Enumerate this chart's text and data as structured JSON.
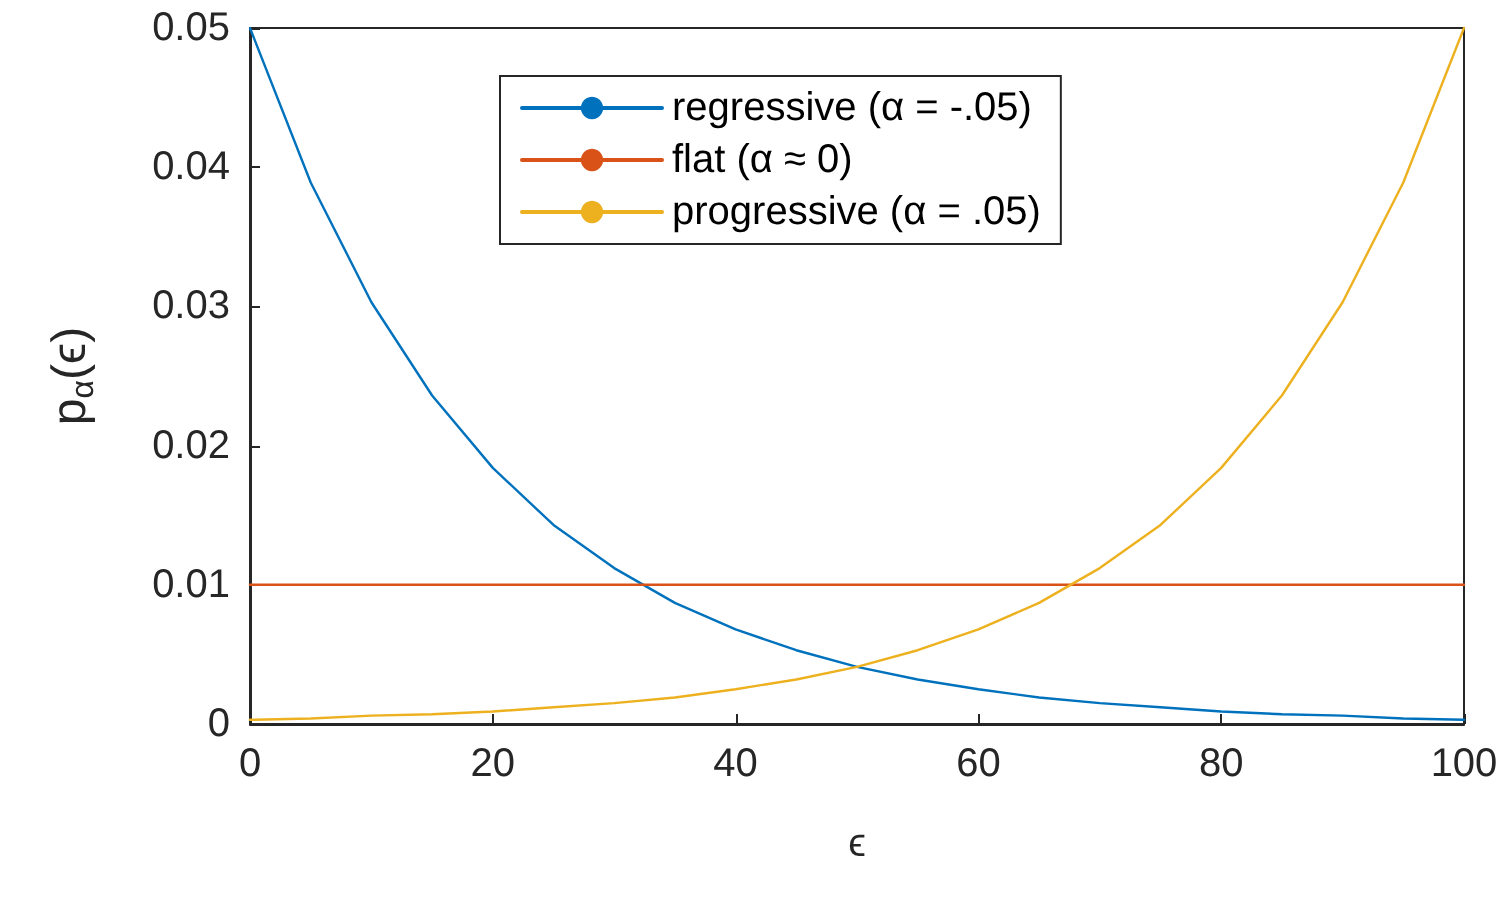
{
  "chart_data": {
    "type": "line",
    "xlabel": "ϵ",
    "ylabel": "p$_{α}$(ϵ)",
    "x": [
      0,
      5,
      10,
      15,
      20,
      25,
      30,
      35,
      40,
      45,
      50,
      55,
      60,
      65,
      70,
      75,
      80,
      85,
      90,
      95,
      100
    ],
    "series": [
      {
        "name": "regressive (α = -.05)",
        "color": "#0072bd",
        "values": [
          0.05,
          0.0389,
          0.0303,
          0.0236,
          0.0184,
          0.0143,
          0.0112,
          0.0087,
          0.0068,
          0.0053,
          0.0041,
          0.0032,
          0.0025,
          0.0019,
          0.0015,
          0.0012,
          0.0009,
          0.0007,
          0.0006,
          0.0004,
          0.0003
        ]
      },
      {
        "name": "flat (α ≈ 0)",
        "color": "#d95319",
        "x": [
          0,
          100
        ],
        "values": [
          0.01,
          0.01
        ]
      },
      {
        "name": "progressive (α = .05)",
        "color": "#edb120",
        "values": [
          0.0003,
          0.0004,
          0.0006,
          0.0007,
          0.0009,
          0.0012,
          0.0015,
          0.0019,
          0.0025,
          0.0032,
          0.0041,
          0.0053,
          0.0068,
          0.0087,
          0.0112,
          0.0143,
          0.0184,
          0.0236,
          0.0303,
          0.0389,
          0.05
        ]
      }
    ],
    "xlim": [
      0,
      100
    ],
    "xticks": [
      0,
      20,
      40,
      60,
      80,
      100
    ],
    "ylim": [
      0,
      0.05
    ],
    "yticks": [
      0,
      0.01,
      0.02,
      0.03,
      0.04,
      0.05
    ],
    "legend": "top",
    "marker": "none",
    "line_style": "solid"
  }
}
